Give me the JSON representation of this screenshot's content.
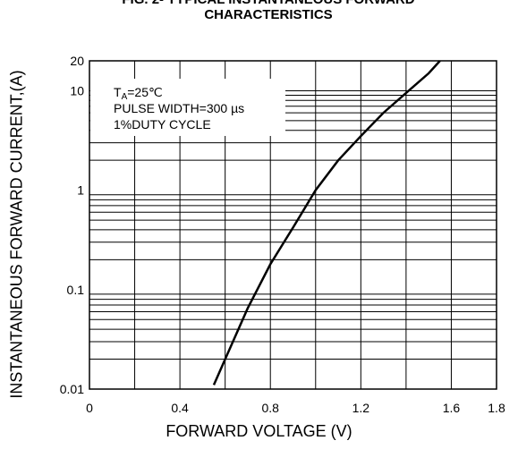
{
  "chart_data": {
    "type": "line",
    "title_line1": "FIG. 2- TYPICAL INSTANTANEOUS FORWARD",
    "title_line2": "CHARACTERISTICS",
    "xlabel": "FORWARD VOLTAGE (V)",
    "ylabel": "INSTANTANEOUS FORWARD CURRENT,(A)",
    "xlim": [
      0,
      1.8
    ],
    "ylim": [
      0.01,
      20
    ],
    "yscale": "log",
    "grid": true,
    "x_ticks": [
      "0",
      "0.4",
      "0.8",
      "1.2",
      "1.6",
      "1.8"
    ],
    "y_ticks": [
      "0.01",
      "0.1",
      "1",
      "10",
      "20"
    ],
    "annotations": {
      "line1_main": "T",
      "line1_sub": "A",
      "line1_rest": "=25℃",
      "line2": "PULSE WIDTH=300 µs",
      "line3": "1%DUTY CYCLE"
    },
    "series": [
      {
        "x": [
          0.55,
          0.6,
          0.7,
          0.8,
          0.9,
          1.0,
          1.1,
          1.2,
          1.3,
          1.4,
          1.5,
          1.55
        ],
        "y": [
          0.011,
          0.02,
          0.065,
          0.18,
          0.42,
          1.0,
          2.0,
          3.5,
          6.0,
          9.5,
          15.0,
          20.0
        ]
      }
    ]
  }
}
